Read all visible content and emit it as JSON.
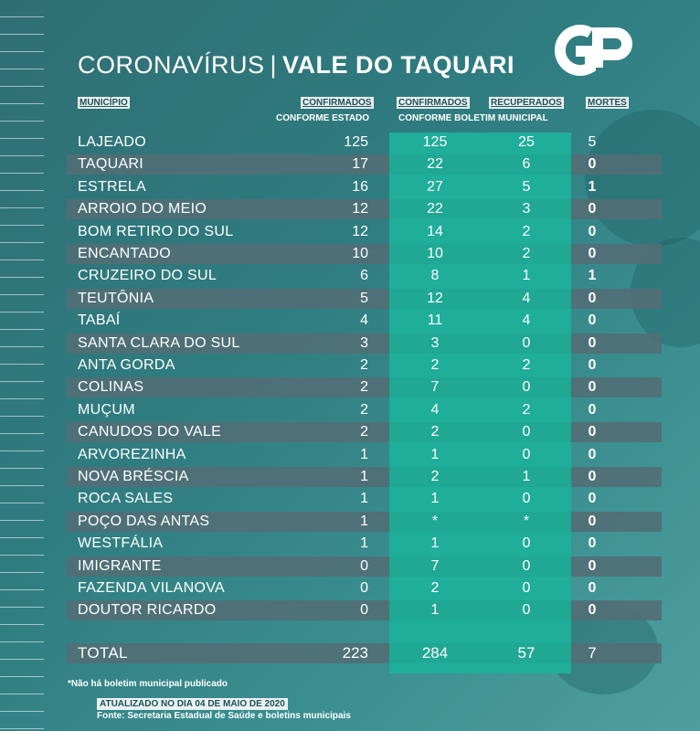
{
  "title": {
    "left": "CORONAVÍRUS",
    "separator": "|",
    "right": "VALE DO TAQUARI"
  },
  "logo": {
    "text": "GP"
  },
  "headers": {
    "municipio": "MUNICÍPIO",
    "confirmados_estado_1": "CONFIRMADOS",
    "confirmados_estado_2": "CONFORME ESTADO",
    "confirmados_boletim_1": "CONFIRMADOS",
    "recuperados": "RECUPERADOS",
    "boletim_2": "CONFORME BOLETIM MUNICIPAL",
    "mortes": "MORTES"
  },
  "chart_data": {
    "type": "table",
    "columns": [
      "MUNICÍPIO",
      "CONFIRMADOS CONFORME ESTADO",
      "CONFIRMADOS CONFORME BOLETIM MUNICIPAL",
      "RECUPERADOS CONFORME BOLETIM MUNICIPAL",
      "MORTES"
    ],
    "rows": [
      [
        "LAJEADO",
        "125",
        "125",
        "25",
        "5"
      ],
      [
        "TAQUARI",
        "17",
        "22",
        "6",
        "0"
      ],
      [
        "ESTRELA",
        "16",
        "27",
        "5",
        "1"
      ],
      [
        "ARROIO DO MEIO",
        "12",
        "22",
        "3",
        "0"
      ],
      [
        "BOM RETIRO DO SUL",
        "12",
        "14",
        "2",
        "0"
      ],
      [
        "ENCANTADO",
        "10",
        "10",
        "2",
        "0"
      ],
      [
        "CRUZEIRO DO SUL",
        "6",
        "8",
        "1",
        "1"
      ],
      [
        "TEUTÔNIA",
        "5",
        "12",
        "4",
        "0"
      ],
      [
        "TABAÍ",
        "4",
        "11",
        "4",
        "0"
      ],
      [
        "SANTA CLARA DO SUL",
        "3",
        "3",
        "0",
        "0"
      ],
      [
        "ANTA GORDA",
        "2",
        "2",
        "2",
        "0"
      ],
      [
        "COLINAS",
        "2",
        "7",
        "0",
        "0"
      ],
      [
        "MUÇUM",
        "2",
        "4",
        "2",
        "0"
      ],
      [
        "CANUDOS DO VALE",
        "2",
        "2",
        "0",
        "0"
      ],
      [
        "ARVOREZINHA",
        "1",
        "1",
        "0",
        "0"
      ],
      [
        "NOVA BRÉSCIA",
        "1",
        "2",
        "1",
        "0"
      ],
      [
        "ROCA SALES",
        "1",
        "1",
        "0",
        "0"
      ],
      [
        "POÇO DAS ANTAS",
        "1",
        "*",
        "*",
        "0"
      ],
      [
        "WESTFÁLIA",
        "1",
        "1",
        "0",
        "0"
      ],
      [
        "IMIGRANTE",
        "0",
        "7",
        "0",
        "0"
      ],
      [
        "FAZENDA VILANOVA",
        "0",
        "2",
        "0",
        "0"
      ],
      [
        "DOUTOR RICARDO",
        "0",
        "1",
        "0",
        "0"
      ]
    ],
    "total": [
      "TOTAL",
      "223",
      "284",
      "57",
      "7"
    ]
  },
  "footer": {
    "note": "*Não há boletim municipal publicado",
    "updated": "ATUALIZADO NO DIA 04 DE MAIO DE 2020",
    "source": "Fonte: Secretaria Estadual de Saúde e boletins municipais"
  },
  "colors": {
    "background": "#2f7c80",
    "highlight_column": "#1fae9a",
    "dark_row": "#526e76",
    "text": "#ffffff"
  }
}
